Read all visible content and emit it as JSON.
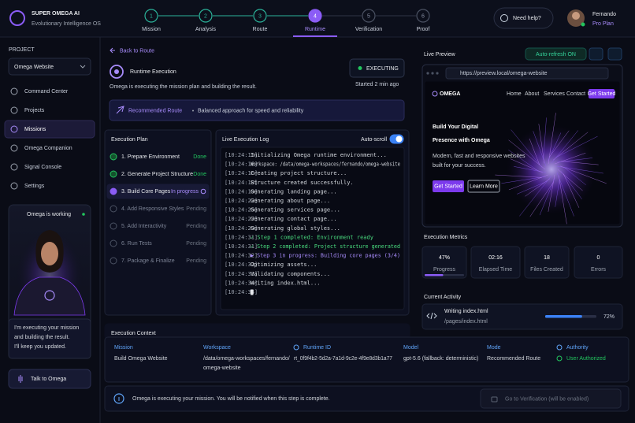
{
  "brand": {
    "name": "SUPER OMEGA AI",
    "tagline": "Evolutionary Intelligence OS"
  },
  "steps": [
    {
      "num": "1",
      "label": "Mission",
      "color": "#2bb39a"
    },
    {
      "num": "2",
      "label": "Analysis",
      "color": "#2bb39a"
    },
    {
      "num": "3",
      "label": "Route",
      "color": "#2bb39a"
    },
    {
      "num": "4",
      "label": "Runtime",
      "color": "#8b5cf6"
    },
    {
      "num": "5",
      "label": "Verification",
      "color": "#4b5263"
    },
    {
      "num": "6",
      "label": "Proof",
      "color": "#4b5263"
    }
  ],
  "help": "Need help?",
  "user": {
    "name": "Fernando",
    "plan": "Pro Plan"
  },
  "sidebar": {
    "project_label": "PROJECT",
    "project": "Omega Website",
    "nav": [
      {
        "label": "Command Center"
      },
      {
        "label": "Projects"
      },
      {
        "label": "Missions",
        "active": true
      },
      {
        "label": "Omega Companion"
      },
      {
        "label": "Signal Console"
      },
      {
        "label": "Settings"
      }
    ],
    "working": "Omega is working",
    "message": [
      "I'm executing your mission",
      "and building the result.",
      "I'll keep you updated."
    ],
    "talk": "Talk to Omega"
  },
  "main": {
    "back": "Back to Route",
    "title": "Runtime Execution",
    "subtitle": "Omega is executing the mission plan and building the result.",
    "status": "EXECUTING",
    "started": "Started 2 min ago",
    "route_label": "Recommended Route",
    "route_desc": "Balanced approach for speed and reliability"
  },
  "plan": {
    "title": "Execution Plan",
    "items": [
      {
        "label": "1. Prepare Environment",
        "status": "Done",
        "color": "#22c55e"
      },
      {
        "label": "2. Generate Project Structure",
        "status": "Done",
        "color": "#22c55e"
      },
      {
        "label": "3. Build Core Pages",
        "status": "In progress",
        "color": "#a78bfa"
      },
      {
        "label": "4. Add Responsive Styles",
        "status": "Pending",
        "color": "#6b7280"
      },
      {
        "label": "5. Add Interactivity",
        "status": "Pending",
        "color": "#6b7280"
      },
      {
        "label": "6. Run Tests",
        "status": "Pending",
        "color": "#6b7280"
      },
      {
        "label": "7. Package & Finalize",
        "status": "Pending",
        "color": "#6b7280"
      }
    ]
  },
  "log": {
    "title": "Live Execution Log",
    "autoscroll": "Auto-scroll",
    "lines": [
      {
        "time": "[10:24:15]",
        "text": "Initializing Omega runtime environment..."
      },
      {
        "time": "[10:24:16]",
        "text": "Workspace: /data/omega-workspaces/fernando/omega-website"
      },
      {
        "time": "[10:24:16]",
        "text": "Creating project structure..."
      },
      {
        "time": "[10:24:18]",
        "text": "Structure created successfully."
      },
      {
        "time": "[10:24:19]",
        "text": "Generating landing page..."
      },
      {
        "time": "[10:24:22]",
        "text": "Generating about page..."
      },
      {
        "time": "[10:24:25]",
        "text": "Generating services page..."
      },
      {
        "time": "[10:24:27]",
        "text": "Generating contact page..."
      },
      {
        "time": "[10:24:29]",
        "text": "Generating global styles..."
      },
      {
        "time": "[10:24:31]",
        "text": "✓ Step 1 completed: Environment ready",
        "color": "#4ade80"
      },
      {
        "time": "[10:24:31]",
        "text": "✓ Step 2 completed: Project structure generated",
        "color": "#4ade80"
      },
      {
        "time": "[10:24:32]",
        "text": "▶ Step 3 in progress: Building core pages (3/4)",
        "color": "#a78bfa"
      },
      {
        "time": "[10:24:32]",
        "text": "Optimizing assets..."
      },
      {
        "time": "[10:24:33]",
        "text": "Validating components..."
      },
      {
        "time": "[10:24:34]",
        "text": "Writing index.html..."
      },
      {
        "time": "[10:24:34]"
      }
    ]
  },
  "preview": {
    "title": "Live Preview",
    "autorefresh": "Auto-refresh ON",
    "url": "https://preview.local/omega-website",
    "site": {
      "logo": "OMEGA",
      "nav": [
        "Home",
        "About",
        "Services",
        "Contact"
      ],
      "cta": "Get Started",
      "heading": [
        "Build Your Digital",
        "Presence with Omega"
      ],
      "text": [
        "Modern, fast and responsive websites",
        "built for your success."
      ],
      "buttons": [
        "Get Started",
        "Learn More"
      ]
    }
  },
  "metrics": {
    "title": "Execution Metrics",
    "items": [
      {
        "value": 47,
        "value_label": "47%",
        "label": "Progress"
      },
      {
        "value": "02:16",
        "label": "Elapsed Time"
      },
      {
        "value": "18",
        "label": "Files Created"
      },
      {
        "value": "0",
        "label": "Errors"
      }
    ]
  },
  "activity": {
    "title": "Current Activity",
    "file": "Writing index.html",
    "path": "/pages/index.html",
    "progress": 72,
    "progress_label": "72%"
  },
  "context": {
    "title": "Execution Context",
    "columns": [
      {
        "header": "Mission",
        "value": [
          "Build Omega Website"
        ]
      },
      {
        "header": "Workspace",
        "value": [
          "/data/omega-workspaces/fernando/",
          "omega-website"
        ]
      },
      {
        "header": "Runtime ID",
        "value": [
          "rt_0f9f4b2-5d2a-7a1d-9c2e-4f9e8d3b1a77"
        ]
      },
      {
        "header": "Model",
        "value": [
          "gpt-5.6 (fallback: deterministic)"
        ]
      },
      {
        "header": "Mode",
        "value": [
          "Recommended Route"
        ]
      },
      {
        "header": "Authority",
        "value": [
          "User Authorized"
        ],
        "color": "#22c55e"
      }
    ]
  },
  "footer": {
    "message": "Omega is executing your mission. You will be notified when this step is complete.",
    "button": "Go to Verification (will be enabled)"
  }
}
